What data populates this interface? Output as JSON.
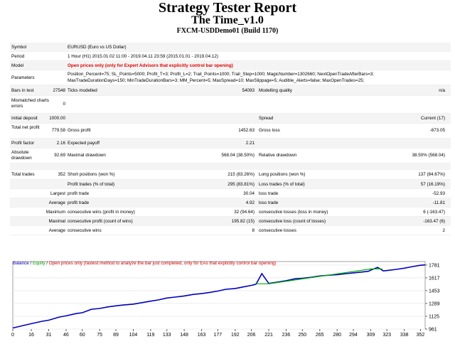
{
  "header": {
    "title": "Strategy Tester Report",
    "ea_name": "The Time_v1.0",
    "account": "FXCM-USDDemo01 (Build 1170)"
  },
  "report": {
    "symbol_label": "Symbol",
    "symbol_value": "EURUSD (Euro vs US Dollar)",
    "period_label": "Period",
    "period_value": "1 Hour (H1) 2015.01.02 11:00 - 2019.04.11 23:59 (2015.01.01 - 2019.04.12)",
    "model_label": "Model",
    "model_value": "Open prices only (only for Expert Advisors that explicitly control bar opening)",
    "params_label": "Parameters",
    "params_line1": "Position_Percent=75; SL_Points=5000; Profit_T=3; Profit_L=2; Trail_Points=1000; Trail_Step=1000; MagicNumber=1302660; NextOpenTradeAfterBars=3;",
    "params_line2": "MaxTradeDurationDays=150; MinTradeDurationBars=3; MM_Percent=5; MaxSpread=10; MaxSlippage=5; Audible_Alerts=false; MaxOpenTrades=25;",
    "bars_label": "Bars in test",
    "bars_value": "27548",
    "ticks_label": "Ticks modelled",
    "ticks_value": "54093",
    "quality_label": "Modelling quality",
    "quality_value": "n/a",
    "mismatch_label": "Mismatched charts errors",
    "mismatch_value": "0",
    "deposit_label": "Initial deposit",
    "deposit_value": "1000.00",
    "spread_label": "Spread",
    "spread_value": "Current (17)",
    "netprofit_label": "Total net profit",
    "netprofit_value": "779.58",
    "grossprofit_label": "Gross profit",
    "grossprofit_value": "1452.63",
    "grossloss_label": "Gross loss",
    "grossloss_value": "-673.05",
    "pf_label": "Profit factor",
    "pf_value": "2.16",
    "payoff_label": "Expected payoff",
    "payoff_value": "2.21",
    "absdd_label": "Absolute drawdown",
    "absdd_value": "92.69",
    "maxdd_label": "Maximal drawdown",
    "maxdd_value": "568.04 (38.50%)",
    "reldd_label": "Relative drawdown",
    "reldd_value": "38.50% (568.04)",
    "trades_label": "Total trades",
    "trades_value": "352",
    "short_label": "Short positions (won %)",
    "short_value": "215 (83.26%)",
    "long_label": "Long positions (won %)",
    "long_value": "137 (84.67%)",
    "profit_trades_label": "Profit trades (% of total)",
    "profit_trades_value": "295 (83.81%)",
    "loss_trades_label": "Loss trades (% of total)",
    "loss_trades_value": "57 (16.19%)",
    "largest_label": "Largest",
    "largest_profit_label": "profit trade",
    "largest_profit_value": "30.04",
    "largest_loss_label": "loss trade",
    "largest_loss_value": "-52.93",
    "average_label": "Average",
    "avg_profit_label": "profit trade",
    "avg_profit_value": "4.92",
    "avg_loss_label": "loss trade",
    "avg_loss_value": "-11.81",
    "maximum_label": "Maximum",
    "max_wins_label": "consecutive wins (profit in money)",
    "max_wins_value": "32 (94.64)",
    "max_losses_label": "consecutive losses (loss in money)",
    "max_losses_value": "6 (-163.47)",
    "maximal_label": "Maximal",
    "maximal_profit_label": "consecutive profit (count of wins)",
    "maximal_profit_value": "195.82 (15)",
    "maximal_loss_label": "consecutive loss (count of losses)",
    "maximal_loss_value": "-163.47 (6)",
    "average2_label": "Average",
    "avg_wins_label": "consecutive wins",
    "avg_wins_value": "8",
    "avg_losses_label": "consecutive losses",
    "avg_losses_value": "2"
  },
  "legend": {
    "balance": "Balance",
    "separator": " / ",
    "equity": "Equity",
    "note": "Open prices only (fastest method to analyze the bar just completed, only for EAs that explicitly control bar opening)"
  },
  "colors": {
    "balance": "#0000c0",
    "equity": "#00b000",
    "note": "#d00000"
  },
  "chart_data": {
    "type": "line",
    "x_ticks": [
      "0",
      "16",
      "31",
      "46",
      "60",
      "75",
      "89",
      "104",
      "119",
      "133",
      "148",
      "163",
      "177",
      "192",
      "206",
      "221",
      "236",
      "250",
      "265",
      "280",
      "294",
      "309",
      "323",
      "338",
      "352"
    ],
    "y_ticks": [
      "1781",
      "1617",
      "1453",
      "1289",
      "1125",
      "961"
    ],
    "xlim": [
      0,
      356
    ],
    "ylim": [
      961,
      1825
    ],
    "series": [
      {
        "name": "Balance",
        "x": [
          0,
          10,
          16,
          25,
          31,
          40,
          46,
          55,
          60,
          68,
          75,
          82,
          89,
          95,
          104,
          112,
          119,
          126,
          133,
          140,
          148,
          156,
          163,
          170,
          177,
          184,
          192,
          199,
          206,
          210,
          215,
          221,
          228,
          236,
          244,
          250,
          258,
          265,
          273,
          280,
          288,
          294,
          301,
          307,
          309,
          315,
          320,
          326,
          331,
          338,
          345,
          352,
          356
        ],
        "y": [
          975,
          1010,
          1030,
          1060,
          1075,
          1115,
          1130,
          1160,
          1170,
          1215,
          1225,
          1245,
          1258,
          1268,
          1280,
          1300,
          1318,
          1335,
          1358,
          1370,
          1385,
          1405,
          1415,
          1430,
          1448,
          1470,
          1480,
          1500,
          1520,
          1535,
          1670,
          1545,
          1560,
          1580,
          1605,
          1610,
          1625,
          1640,
          1650,
          1658,
          1670,
          1680,
          1690,
          1700,
          1715,
          1750,
          1705,
          1715,
          1725,
          1740,
          1760,
          1778,
          1782
        ]
      },
      {
        "name": "Equity",
        "x": [
          209,
          221,
          309,
          319
        ],
        "y": [
          1540,
          1540,
          1730,
          1730
        ]
      }
    ]
  }
}
